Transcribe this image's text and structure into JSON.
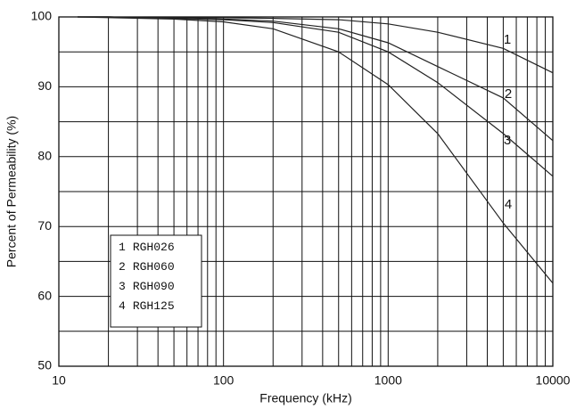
{
  "chart_data": {
    "type": "line",
    "x_label": "Frequency (kHz)",
    "y_label": "Percent of Permeability (%)",
    "x": [
      13,
      20,
      50,
      100,
      200,
      500,
      1000,
      2000,
      5000,
      10000
    ],
    "series": [
      {
        "name": "RGH026",
        "label": "1",
        "color": "#222222",
        "values": [
          100,
          100,
          99.9,
          99.9,
          99.8,
          99.6,
          99.0,
          97.8,
          95.5,
          92.0
        ]
      },
      {
        "name": "RGH060",
        "label": "2",
        "color": "#222222",
        "values": [
          100,
          100,
          99.9,
          99.7,
          99.4,
          98.3,
          96.3,
          92.9,
          88.4,
          82.3
        ]
      },
      {
        "name": "RGH090",
        "label": "3",
        "color": "#222222",
        "values": [
          100,
          100,
          99.8,
          99.6,
          99.2,
          97.8,
          95.0,
          90.6,
          83.3,
          77.2
        ]
      },
      {
        "name": "RGH125",
        "label": "4",
        "color": "#222222",
        "values": [
          100,
          99.9,
          99.7,
          99.3,
          98.3,
          95.0,
          90.3,
          83.3,
          70.5,
          61.9
        ]
      }
    ],
    "xlog": true,
    "xlim": [
      10,
      10000
    ],
    "xticks": [
      10,
      100,
      1000,
      10000
    ],
    "ylim": [
      50,
      100
    ],
    "yticks": [
      50,
      60,
      70,
      80,
      90,
      100
    ],
    "yminor": [
      55,
      65,
      75,
      85,
      95
    ],
    "grid": true
  }
}
